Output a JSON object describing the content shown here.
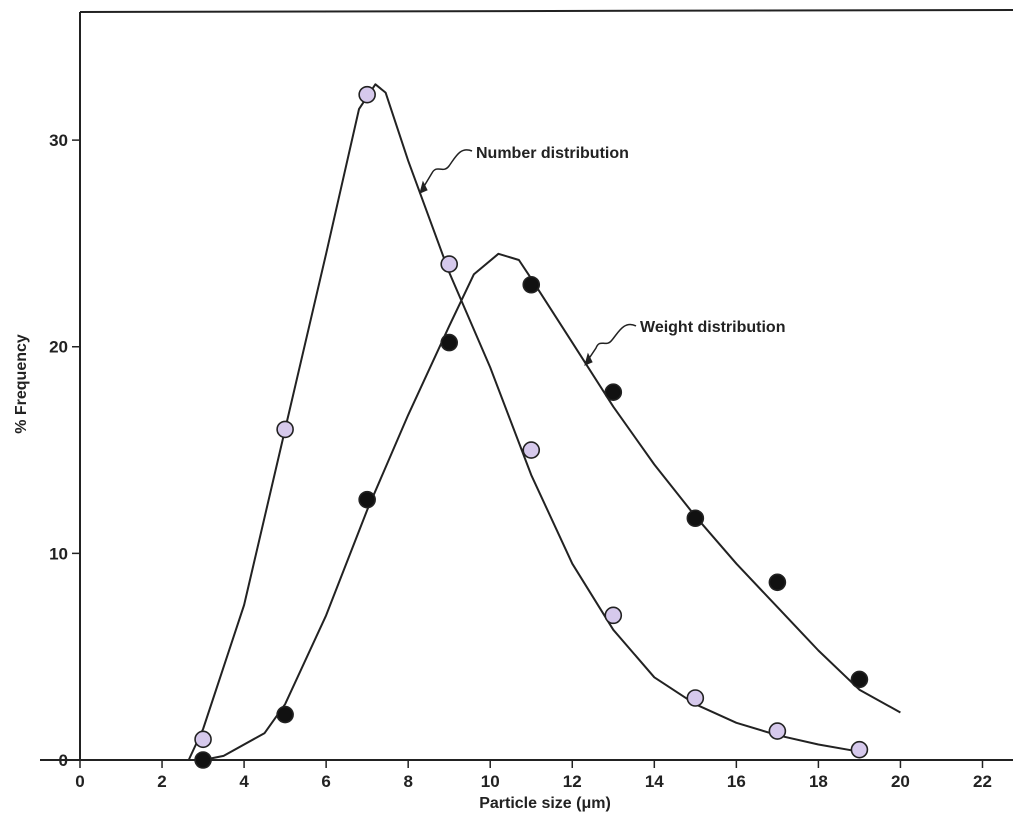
{
  "chart_data": {
    "type": "line",
    "title": "",
    "xlabel": "Particle size (μm)",
    "ylabel": "% Frequency",
    "xlim": [
      0,
      22.5
    ],
    "ylim": [
      0,
      36.2
    ],
    "xticks": [
      0,
      2,
      4,
      6,
      8,
      10,
      12,
      14,
      16,
      18,
      20,
      22
    ],
    "yticks": [
      0,
      10,
      20,
      30
    ],
    "grid": false,
    "legend": "none",
    "series": [
      {
        "name": "Number distribution",
        "marker": "open-circle",
        "marker_color": "#d6c9ec",
        "points": [
          [
            3,
            1
          ],
          [
            5,
            16
          ],
          [
            7,
            32.2
          ],
          [
            9,
            24
          ],
          [
            11,
            15
          ],
          [
            13,
            7
          ],
          [
            15,
            3
          ],
          [
            17,
            1.4
          ],
          [
            19,
            0.5
          ]
        ],
        "curve": [
          [
            2.65,
            0
          ],
          [
            3,
            1.5
          ],
          [
            4,
            7.5
          ],
          [
            5,
            16
          ],
          [
            6,
            24.5
          ],
          [
            6.8,
            31.5
          ],
          [
            7.2,
            32.7
          ],
          [
            7.45,
            32.3
          ],
          [
            8,
            29
          ],
          [
            9,
            23.6
          ],
          [
            10,
            19
          ],
          [
            11,
            13.8
          ],
          [
            12,
            9.5
          ],
          [
            13,
            6.3
          ],
          [
            14,
            4
          ],
          [
            15,
            2.7
          ],
          [
            16,
            1.8
          ],
          [
            17,
            1.2
          ],
          [
            18,
            0.75
          ],
          [
            19,
            0.4
          ]
        ]
      },
      {
        "name": "Weight distribution",
        "marker": "filled-circle",
        "marker_color": "#111111",
        "points": [
          [
            3,
            0
          ],
          [
            5,
            2.2
          ],
          [
            7,
            12.6
          ],
          [
            9,
            20.2
          ],
          [
            11,
            23
          ],
          [
            13,
            17.8
          ],
          [
            15,
            11.7
          ],
          [
            17,
            8.6
          ],
          [
            19,
            3.9
          ]
        ],
        "curve": [
          [
            3,
            0
          ],
          [
            3.5,
            0.2
          ],
          [
            4.5,
            1.3
          ],
          [
            5,
            2.7
          ],
          [
            6,
            7
          ],
          [
            7,
            12.1
          ],
          [
            8,
            16.7
          ],
          [
            9,
            21
          ],
          [
            9.6,
            23.5
          ],
          [
            10.2,
            24.5
          ],
          [
            10.7,
            24.2
          ],
          [
            11,
            23.3
          ],
          [
            12,
            20.2
          ],
          [
            13,
            17.1
          ],
          [
            14,
            14.3
          ],
          [
            15,
            11.8
          ],
          [
            16,
            9.5
          ],
          [
            17,
            7.4
          ],
          [
            18,
            5.3
          ],
          [
            19,
            3.4
          ],
          [
            20,
            2.3
          ]
        ]
      }
    ],
    "annotations": [
      {
        "text": "Number distribution",
        "points_to": "Number distribution",
        "at": [
          8.4,
          27.8
        ]
      },
      {
        "text": "Weight distribution",
        "points_to": "Weight distribution",
        "at": [
          12.4,
          19.6
        ]
      }
    ]
  }
}
